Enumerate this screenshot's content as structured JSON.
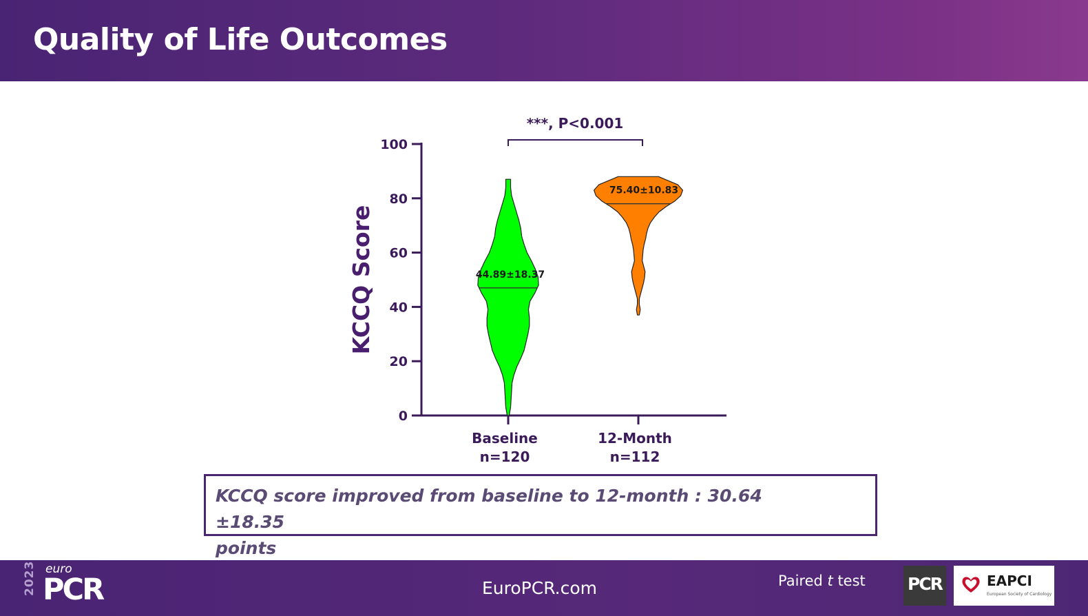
{
  "header": {
    "title": "Quality of Life Outcomes"
  },
  "chart_data": {
    "type": "violin",
    "ylabel": "KCCQ Score",
    "ylim": [
      0,
      100
    ],
    "yticks": [
      0,
      20,
      40,
      60,
      80,
      100
    ],
    "significance": "***, P<0.001",
    "groups": [
      {
        "name": "Baseline",
        "n_label": "n=120",
        "color": "#00ff00",
        "stat_label": "44.89±18.37",
        "median": 47,
        "min": 0,
        "max": 87,
        "density": [
          [
            0,
            0.02
          ],
          [
            3,
            0.05
          ],
          [
            6,
            0.06
          ],
          [
            9,
            0.07
          ],
          [
            12,
            0.08
          ],
          [
            15,
            0.12
          ],
          [
            18,
            0.18
          ],
          [
            21,
            0.26
          ],
          [
            24,
            0.33
          ],
          [
            27,
            0.37
          ],
          [
            30,
            0.41
          ],
          [
            33,
            0.44
          ],
          [
            36,
            0.44
          ],
          [
            39,
            0.42
          ],
          [
            42,
            0.45
          ],
          [
            45,
            0.55
          ],
          [
            48,
            0.63
          ],
          [
            51,
            0.62
          ],
          [
            54,
            0.56
          ],
          [
            57,
            0.48
          ],
          [
            60,
            0.39
          ],
          [
            63,
            0.33
          ],
          [
            66,
            0.28
          ],
          [
            69,
            0.26
          ],
          [
            72,
            0.22
          ],
          [
            75,
            0.17
          ],
          [
            78,
            0.12
          ],
          [
            81,
            0.07
          ],
          [
            84,
            0.05
          ],
          [
            87,
            0.05
          ]
        ]
      },
      {
        "name": "12-Month",
        "n_label": "n=112",
        "color": "#ff8000",
        "stat_label": "75.40±10.83",
        "median": 78,
        "min": 37,
        "max": 88,
        "density": [
          [
            37,
            0.02
          ],
          [
            39,
            0.04
          ],
          [
            41,
            0.02
          ],
          [
            43,
            0.02
          ],
          [
            45,
            0.05
          ],
          [
            47,
            0.08
          ],
          [
            49,
            0.11
          ],
          [
            51,
            0.13
          ],
          [
            53,
            0.14
          ],
          [
            55,
            0.11
          ],
          [
            57,
            0.08
          ],
          [
            59,
            0.09
          ],
          [
            61,
            0.1
          ],
          [
            63,
            0.12
          ],
          [
            65,
            0.15
          ],
          [
            67,
            0.17
          ],
          [
            69,
            0.2
          ],
          [
            71,
            0.25
          ],
          [
            73,
            0.33
          ],
          [
            75,
            0.43
          ],
          [
            77,
            0.58
          ],
          [
            79,
            0.76
          ],
          [
            81,
            0.88
          ],
          [
            83,
            0.92
          ],
          [
            85,
            0.82
          ],
          [
            87,
            0.55
          ],
          [
            88,
            0.42
          ]
        ]
      }
    ]
  },
  "summary": {
    "line1": "KCCQ score improved from baseline to 12-month : 30.64 ±18.35",
    "line2": "points"
  },
  "footer": {
    "year": "2023",
    "euro": "euro",
    "pcr": "PCR",
    "site": "EuroPCR.com",
    "test_prefix": "Paired ",
    "test_italic": "t",
    "test_suffix": " test",
    "logo_pcr": "PCR",
    "logo_eapci": "EAPCI",
    "logo_eapci_sub": "European Society of Cardiology"
  }
}
